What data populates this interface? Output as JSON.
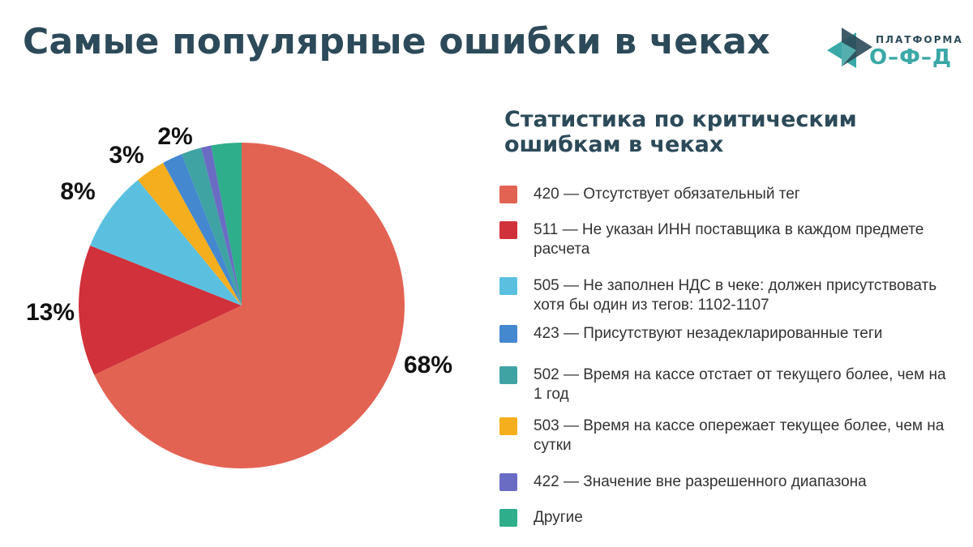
{
  "page": {
    "title": "Самые популярные ошибки в чеках"
  },
  "logo": {
    "top_text": "ПЛАТФОРМА",
    "bottom_text": "О–Ф–Д",
    "color_dark": "#2c4a59",
    "color_teal": "#3aa8a6"
  },
  "chart_data": {
    "type": "pie",
    "title": "Статистика по критическим ошибкам в чеках",
    "legend_position": "right",
    "slices": [
      {
        "code": "420",
        "label": "420 — Отсутствует обязательный тег",
        "value": 68,
        "display": "68%",
        "color": "#e36353"
      },
      {
        "code": "511",
        "label": "511 — Не указан ИНН поставщика в каждом предмете расчета",
        "value": 13,
        "display": "13%",
        "color": "#d0313a"
      },
      {
        "code": "505",
        "label": "505 — Не заполнен  НДС в чеке: должен присутствовать хотя бы один из тегов: 1102-1107",
        "value": 8,
        "display": "8%",
        "color": "#5bc0e0"
      },
      {
        "code": "503",
        "label": "503 — Время на кассе опережает текущее более, чем на сутки",
        "value": 3,
        "display": "3%",
        "color": "#f5ae1e"
      },
      {
        "code": "423",
        "label": "423 — Присутствуют незадекларированные теги",
        "value": 2,
        "display": "2%",
        "color": "#4488d0"
      },
      {
        "code": "502",
        "label": "502 — Время на кассе отстает от текущего более, чем на 1 год",
        "value": 2,
        "display": "",
        "color": "#3fa3a3"
      },
      {
        "code": "422",
        "label": "422 — Значение вне разрешенного диапазона",
        "value": 1,
        "display": "",
        "color": "#6a6cc4"
      },
      {
        "code": "other",
        "label": "Другие",
        "value": 3,
        "display": "",
        "color": "#2fae8b"
      }
    ],
    "legend_order": [
      "420",
      "511",
      "505",
      "423",
      "502",
      "503",
      "422",
      "other"
    ]
  }
}
